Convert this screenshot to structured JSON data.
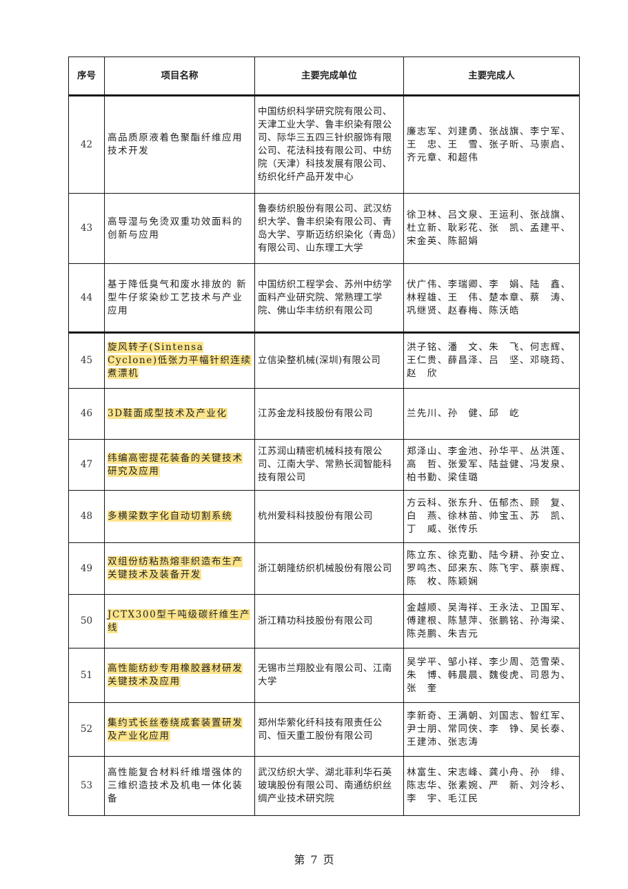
{
  "table": {
    "headers": [
      "序号",
      "项目名称",
      "主要完成单位",
      "主要完成人"
    ],
    "rows": [
      {
        "no": "42",
        "name": "高品质原液着色聚酯纤维应用技术开发",
        "unit": "中国纺织科学研究院有限公司、天津工业大学、鲁丰织染有限公司、际华三五四三针织服饰有限公司、花法科技有限公司、中纺院（天津）科技发展有限公司、纺织化纤产品开发中心",
        "people": "廉志军、刘建勇、张战旗、李宁军、王　忠、王　雪、张子昕、马崇启、齐元章、和超伟",
        "highlighted": false
      },
      {
        "no": "43",
        "name": "高导湿与免烫双重功效面料的创新与应用",
        "unit": "鲁泰纺织股份有限公司、武汉纺织大学、鲁丰织染有限公司、青岛大学、亨斯迈纺织染化（青岛）有限公司、山东理工大学",
        "people": "徐卫林、吕文泉、王运利、张战旗、杜立新、耿彩花、张　凯、孟建平、宋金英、陈韶娟",
        "highlighted": false
      },
      {
        "no": "44",
        "name": "基于降低臭气和废水排放的 新型牛仔浆染纱工艺技术与产业应用",
        "unit": "中国纺织工程学会、苏州中纺学面料产业研究院、常熟理工学院、佛山华丰纺织有限公司",
        "people": "伏广伟、李瑞卿、李　娟、陆　鑫、林程雄、王　伟、楚本章、蔡　涛、巩继贤、赵春梅、陈沃皓",
        "highlighted": false
      },
      {
        "no": "45",
        "name": "旋风转子(Sintensa Cyclone)低张力平幅针织连续煮漂机",
        "unit": "立信染整机械(深圳)有限公司",
        "people": "洪子铭、潘　文、朱　飞、何志辉、王仁贵、薛昌泽、吕　坚、邓晓筠、赵　欣",
        "highlighted": true
      },
      {
        "no": "46",
        "name": "3D鞋面成型技术及产业化",
        "unit": "江苏金龙科技股份有限公司",
        "people": "兰先川、孙　健、邱　屹",
        "highlighted": true
      },
      {
        "no": "47",
        "name": "纬编高密提花装备的关键技术研究及应用",
        "unit": "江苏润山精密机械科技有限公司、江南大学、常熟长润智能科技有限公司",
        "people": "郑泽山、李金池、孙华平、丛洪莲、高　哲、张爱军、陆益健、冯发泉、柏书勤、梁佳璐",
        "highlighted": true
      },
      {
        "no": "48",
        "name": "多横梁数字化自动切割系统",
        "unit": "杭州爱科科技股份有限公司",
        "people": "方云科、张东升、伍郁杰、顾　复、白　燕、徐林苗、帅宝玉、苏　凯、丁　威、张传乐",
        "highlighted": true
      },
      {
        "no": "49",
        "name": "双组份纺粘热熔非织造布生产关键技术及装备开发",
        "unit": "浙江朝隆纺织机械股份有限公司",
        "people": "陈立东、徐克勤、陆今耕、孙安立、罗鸣杰、邱来东、陈飞宇、蔡崇辉、陈　枚、陈颖娴",
        "highlighted": true
      },
      {
        "no": "50",
        "name": "JCTX300型千吨级碳纤维生产线",
        "unit": "浙江精功科技股份有限公司",
        "people": "金越顺、吴海祥、王永法、卫国军、傅建根、陈慧萍、张鹏铭、孙海梁、陈尧鹏、朱吉元",
        "highlighted": true
      },
      {
        "no": "51",
        "name": "高性能纺纱专用橡胶器材研发关键技术及应用",
        "unit": "无锡市兰翔胶业有限公司、江南大学",
        "people": "吴学平、邹小祥、李少周、范雪荣、朱　博、韩晨晨、魏俊虎、司恩为、张　奎",
        "highlighted": true
      },
      {
        "no": "52",
        "name": "集约式长丝卷绕成套装置研发及产业化应用",
        "unit": "郑州华萦化纤科技有限责任公司、恒天重工股份有限公司",
        "people": "李新奇、王满朝、刘国志、智红军、尹士朋、常同侠、李　铮、吴长泰、王建沛、张志涛",
        "highlighted": true
      },
      {
        "no": "53",
        "name": "高性能复合材料纤维增强体的三维织造技术及机电一体化装备",
        "unit": "武汉纺织大学、湖北菲利华石英玻璃股份有限公司、南通纺织丝绸产业技术研究院",
        "people": "林富生、宋志峰、龚小舟、孙　绯、陈志华、张素婉、严　新、刘泠杉、李　宇、毛江民",
        "highlighted": false
      }
    ]
  },
  "footer": {
    "page_label": "第 7 页"
  },
  "colors": {
    "highlight": "#fde58c"
  }
}
